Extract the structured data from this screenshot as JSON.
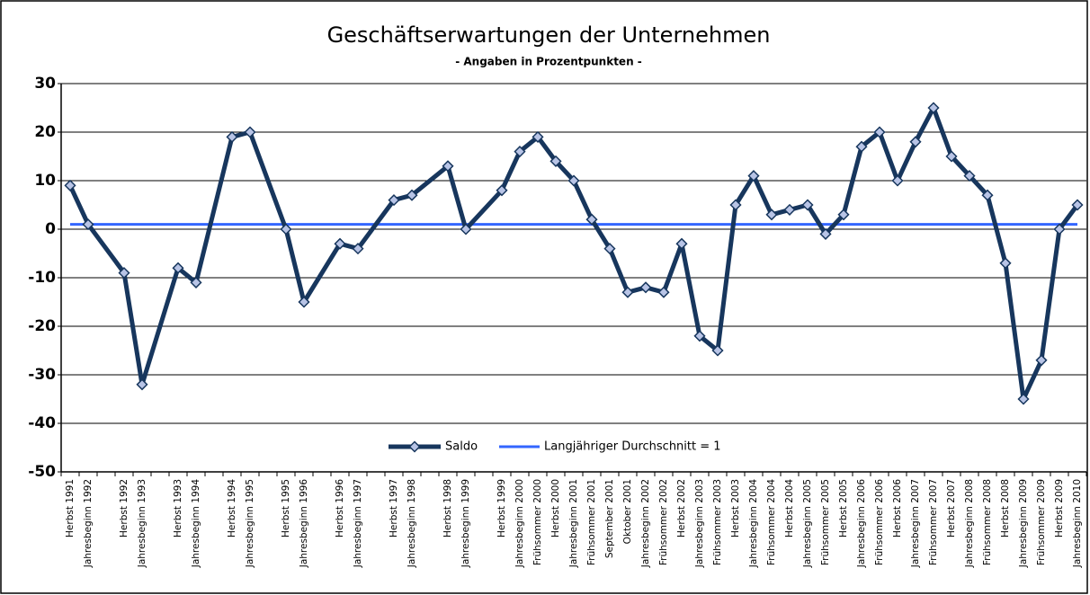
{
  "chart_data": {
    "type": "line",
    "title": "Geschäftserwartungen der Unternehmen",
    "subtitle": "- Angaben in Prozentpunkten -",
    "categories": [
      "Herbst 1991",
      "Jahresbeginn 1992",
      null,
      "Herbst 1992",
      "Jahresbeginn 1993",
      null,
      "Herbst 1993",
      "Jahresbeginn 1994",
      null,
      "Herbst 1994",
      "Jahresbeginn 1995",
      null,
      "Herbst 1995",
      "Jahresbeginn 1996",
      null,
      "Herbst 1996",
      "Jahresbeginn 1997",
      null,
      "Herbst 1997",
      "Jahresbeginn 1998",
      null,
      "Herbst 1998",
      "Jahresbeginn 1999",
      null,
      "Herbst 1999",
      "Jahresbeginn 2000",
      "Frühsommer 2000",
      "Herbst 2000",
      "Jahresbeginn 2001",
      "Frühsommer 2001",
      "September 2001",
      "Oktober 2001",
      "Jahresbeginn 2002",
      "Frühsommer 2002",
      "Herbst 2002",
      "Jahresbeginn 2003",
      "Frühsommer 2003",
      "Herbst 2003",
      "Jahresbeginn 2004",
      "Frühsommer 2004",
      "Herbst 2004",
      "Jahresbeginn 2005",
      "Frühsommer 2005",
      "Herbst 2005",
      "Jahresbeginn 2006",
      "Frühsommer 2006",
      "Herbst 2006",
      "Jahresbeginn 2007",
      "Frühsommer 2007",
      "Herbst 2007",
      "Jahresbeginn 2008",
      "Frühsommer 2008",
      "Herbst 2008",
      "Jahresbeginn 2009",
      "Frühsommer 2009",
      "Herbst 2009",
      "Jahresbeginn 2010"
    ],
    "series": [
      {
        "name": "Saldo",
        "color": "#17365d",
        "marker_color": "#b8c4e6",
        "values": [
          9,
          1,
          null,
          -9,
          -32,
          null,
          -8,
          -11,
          null,
          19,
          20,
          null,
          0,
          -15,
          null,
          -3,
          -4,
          null,
          6,
          7,
          null,
          13,
          0,
          null,
          8,
          16,
          19,
          14,
          10,
          2,
          -4,
          -13,
          -12,
          -13,
          -3,
          -22,
          -25,
          5,
          11,
          3,
          4,
          5,
          -1,
          3,
          17,
          20,
          10,
          18,
          25,
          15,
          11,
          7,
          -7,
          -35,
          -27,
          0,
          5
        ]
      }
    ],
    "connect_gaps": true,
    "reference_line": {
      "name": "Langjähriger Durchschnitt = 1",
      "value": 1,
      "color": "#3366ff"
    },
    "ylim": [
      -50,
      30
    ],
    "yticks": [
      -50,
      -40,
      -30,
      -20,
      -10,
      0,
      10,
      20,
      30
    ],
    "grid": true,
    "legend": "bottom"
  }
}
